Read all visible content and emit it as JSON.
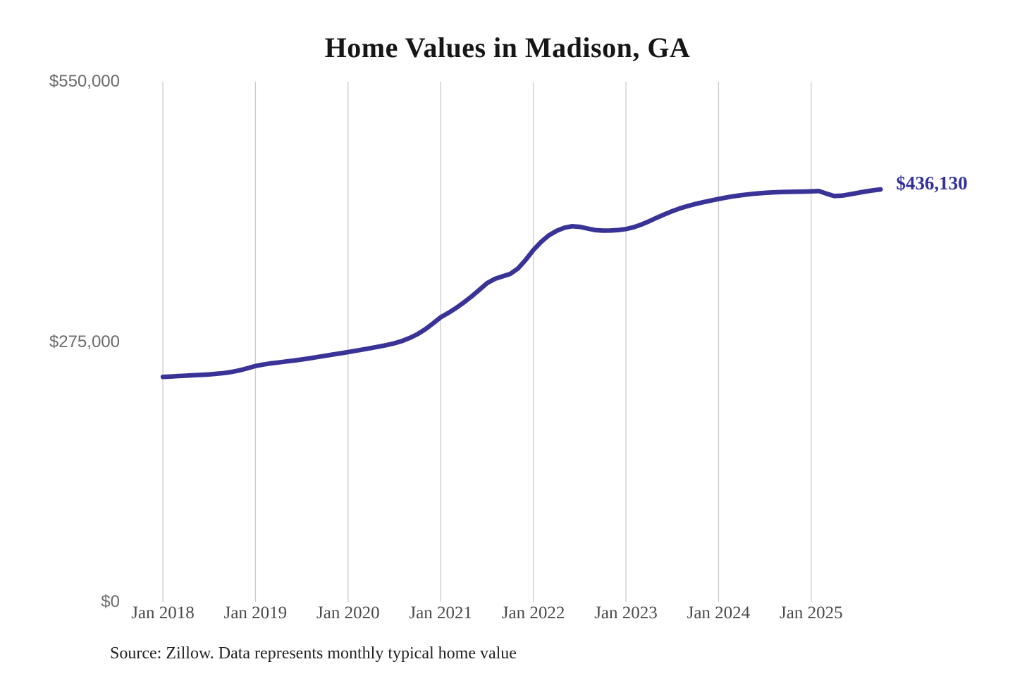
{
  "title": "Home Values in Madison, GA",
  "source_note": "Source: Zillow. Data represents monthly typical home value",
  "end_label": "$436,130",
  "colors": {
    "line": "#3a3397",
    "end_label": "#34309b",
    "grid": "#cccccc",
    "x_axis_text": "#4a4a4a",
    "y_axis_text": "#6b6b6b",
    "title_text": "#161616",
    "source_text": "#222222"
  },
  "chart_data": {
    "type": "line",
    "title": "Home Values in Madison, GA",
    "xlabel": "",
    "ylabel": "",
    "ylim": [
      0,
      550000
    ],
    "y_ticks": [
      0,
      275000,
      550000
    ],
    "y_tick_labels": [
      "$0",
      "$275,000",
      "$550,000"
    ],
    "x_tick_labels": [
      "Jan 2018",
      "Jan 2019",
      "Jan 2020",
      "Jan 2021",
      "Jan 2022",
      "Jan 2023",
      "Jan 2024",
      "Jan 2025"
    ],
    "x_start": "2018-01",
    "x_end": "2025-10",
    "frequency": "monthly",
    "grid": "vertical-only",
    "legend": "none",
    "end_value": 436130,
    "series": [
      {
        "name": "Typical home value",
        "values": [
          238000,
          238400,
          238900,
          239300,
          239700,
          240100,
          240600,
          241300,
          242100,
          243400,
          245000,
          247200,
          249500,
          251000,
          252300,
          253300,
          254300,
          255300,
          256400,
          257600,
          258900,
          260300,
          261600,
          262900,
          264200,
          265600,
          267000,
          268500,
          270000,
          271600,
          273500,
          276000,
          279200,
          283200,
          288300,
          294500,
          301000,
          305700,
          310800,
          316600,
          323000,
          330000,
          337000,
          341500,
          344200,
          346800,
          352500,
          361500,
          372000,
          380500,
          387500,
          392300,
          395600,
          397200,
          396600,
          394800,
          393200,
          392600,
          392700,
          393200,
          394200,
          396200,
          399000,
          402500,
          406200,
          409800,
          413100,
          416100,
          418600,
          420700,
          422600,
          424400,
          426000,
          427600,
          429000,
          430100,
          431100,
          431900,
          432500,
          433000,
          433300,
          433500,
          433700,
          433800,
          434100,
          434400,
          431600,
          429100,
          429600,
          430900,
          432400,
          433900,
          435100,
          436130
        ]
      }
    ]
  }
}
